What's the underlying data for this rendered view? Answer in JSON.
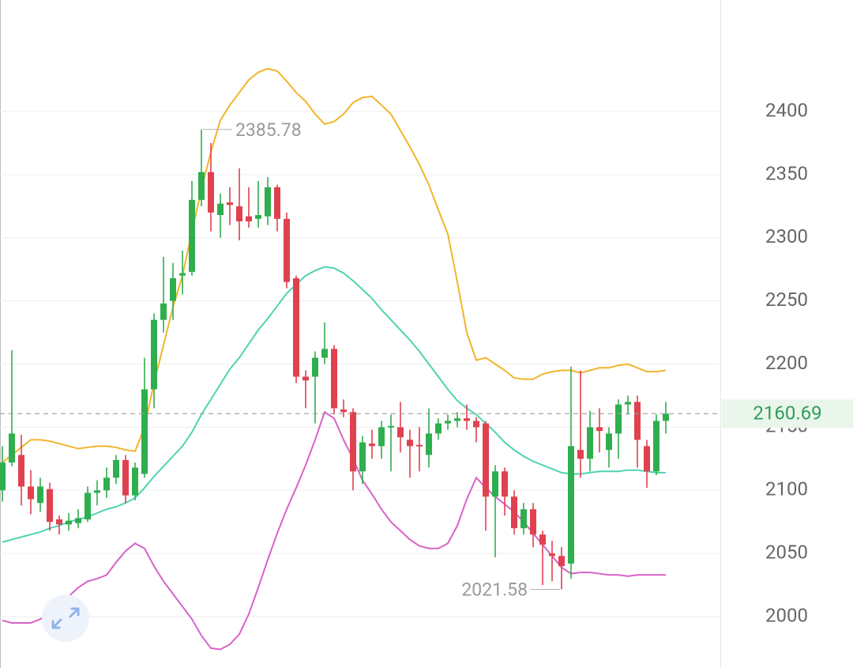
{
  "chart_data": {
    "type": "candlestick",
    "open": [
      2100,
      2122,
      2128,
      2103,
      2090,
      2101,
      2077,
      2073,
      2074,
      2077,
      2098,
      2100,
      2110,
      2124,
      2096,
      2113,
      2180,
      2235,
      2250,
      2270,
      2273,
      2330,
      2352,
      2318,
      2328,
      2325,
      2317,
      2315,
      2317,
      2340,
      2315,
      2268,
      2190,
      2190,
      2205,
      2212,
      2164,
      2162,
      2115,
      2137,
      2135,
      2150,
      2150,
      2140,
      2136,
      2128,
      2145,
      2153,
      2155,
      2157,
      2155,
      2153,
      2095,
      2115,
      2095,
      2070,
      2085,
      2065,
      2050,
      2048,
      2042,
      2132,
      2125,
      2150,
      2132,
      2145,
      2168,
      2170,
      2135,
      2115,
      2155
    ],
    "high": [
      2135,
      2211,
      2144,
      2116,
      2110,
      2106,
      2080,
      2082,
      2085,
      2103,
      2108,
      2118,
      2128,
      2128,
      2122,
      2205,
      2240,
      2285,
      2280,
      2290,
      2345,
      2385.78,
      2375,
      2335,
      2340,
      2355,
      2340,
      2345,
      2348,
      2342,
      2320,
      2270,
      2195,
      2210,
      2233,
      2215,
      2172,
      2165,
      2143,
      2148,
      2155,
      2160,
      2170,
      2148,
      2150,
      2165,
      2157,
      2160,
      2162,
      2168,
      2158,
      2155,
      2120,
      2118,
      2100,
      2090,
      2090,
      2068,
      2060,
      2055,
      2198,
      2195,
      2163,
      2165,
      2150,
      2172,
      2175,
      2175,
      2140,
      2160,
      2170
    ],
    "low": [
      2091,
      2119,
      2088,
      2081,
      2083,
      2068,
      2065,
      2068,
      2070,
      2075,
      2088,
      2094,
      2105,
      2090,
      2092,
      2110,
      2165,
      2225,
      2235,
      2255,
      2270,
      2325,
      2305,
      2300,
      2310,
      2298,
      2308,
      2308,
      2310,
      2305,
      2260,
      2185,
      2165,
      2153,
      2200,
      2160,
      2158,
      2100,
      2105,
      2125,
      2125,
      2115,
      2130,
      2110,
      2115,
      2118,
      2140,
      2148,
      2150,
      2148,
      2138,
      2068,
      2047,
      2080,
      2065,
      2065,
      2055,
      2025,
      2028,
      2021.58,
      2030,
      2110,
      2115,
      2130,
      2118,
      2125,
      2160,
      2118,
      2102,
      2112,
      2145
    ],
    "close": [
      2122,
      2145,
      2103,
      2093,
      2103,
      2075,
      2073,
      2076,
      2078,
      2098,
      2100,
      2110,
      2124,
      2096,
      2118,
      2180,
      2235,
      2248,
      2268,
      2272,
      2330,
      2352,
      2320,
      2327,
      2326,
      2313,
      2313,
      2318,
      2340,
      2315,
      2265,
      2190,
      2187,
      2205,
      2212,
      2165,
      2162,
      2115,
      2138,
      2135,
      2150,
      2151,
      2142,
      2135,
      2135,
      2145,
      2153,
      2155,
      2157,
      2155,
      2150,
      2095,
      2115,
      2095,
      2070,
      2085,
      2065,
      2057,
      2048,
      2040,
      2135,
      2125,
      2150,
      2147,
      2145,
      2168,
      2170,
      2140,
      2115,
      2155,
      2160.69
    ],
    "up_color": "#2fae4e",
    "down_color": "#e0414f",
    "bands": [
      {
        "color": "#f0b52a",
        "values": [
          2122,
          2128,
          2134,
          2140,
          2140,
          2139,
          2137,
          2135,
          2133,
          2134,
          2135,
          2135,
          2134,
          2132,
          2131,
          2150,
          2185,
          2215,
          2245,
          2270,
          2305,
          2338,
          2368,
          2393,
          2405,
          2415,
          2425,
          2431,
          2434,
          2432,
          2424,
          2415,
          2408,
          2398,
          2390,
          2392,
          2398,
          2407,
          2411,
          2412,
          2405,
          2398,
          2385,
          2372,
          2358,
          2342,
          2322,
          2303,
          2265,
          2225,
          2203,
          2205,
          2200,
          2195,
          2189,
          2188,
          2188,
          2192,
          2194,
          2195,
          2195,
          2193,
          2195,
          2197,
          2197,
          2199,
          2200,
          2197,
          2194,
          2194,
          2195
        ]
      },
      {
        "color": "#4fd3b2",
        "values": [
          2059,
          2061,
          2063,
          2065,
          2067,
          2070,
          2072,
          2075,
          2077,
          2079,
          2082,
          2085,
          2087,
          2090,
          2094,
          2102,
          2111,
          2119,
          2127,
          2135,
          2146,
          2160,
          2172,
          2184,
          2196,
          2205,
          2216,
          2227,
          2236,
          2246,
          2256,
          2263,
          2270,
          2274,
          2277,
          2276,
          2272,
          2266,
          2259,
          2252,
          2243,
          2235,
          2227,
          2219,
          2210,
          2200,
          2190,
          2180,
          2171,
          2165,
          2160,
          2153,
          2146,
          2138,
          2132,
          2127,
          2123,
          2120,
          2117,
          2114,
          2113,
          2113,
          2114,
          2115,
          2115,
          2115,
          2116,
          2116,
          2115,
          2114,
          2114
        ]
      },
      {
        "color": "#d862c8",
        "values": [
          1997,
          1995,
          1995,
          1995,
          1998,
          2002,
          2008,
          2016,
          2023,
          2028,
          2030,
          2033,
          2043,
          2052,
          2058,
          2054,
          2040,
          2028,
          2018,
          2008,
          1998,
          1985,
          1975,
          1974,
          1978,
          1986,
          2002,
          2023,
          2045,
          2066,
          2085,
          2102,
          2120,
          2140,
          2162,
          2157,
          2140,
          2125,
          2108,
          2097,
          2085,
          2075,
          2068,
          2061,
          2056,
          2054,
          2054,
          2058,
          2072,
          2093,
          2110,
          2102,
          2095,
          2089,
          2083,
          2075,
          2066,
          2057,
          2048,
          2039,
          2034,
          2035,
          2035,
          2034,
          2033,
          2033,
          2032,
          2033,
          2033,
          2033,
          2033
        ]
      }
    ],
    "max_high": 2385.78,
    "min_low": 2021.58,
    "last_price": 2160.69,
    "ylim": [
      1959.3,
      2488.3
    ],
    "yticks": [
      2000,
      2050,
      2100,
      2150,
      2200,
      2250,
      2300,
      2350,
      2400
    ],
    "grid": true
  }
}
